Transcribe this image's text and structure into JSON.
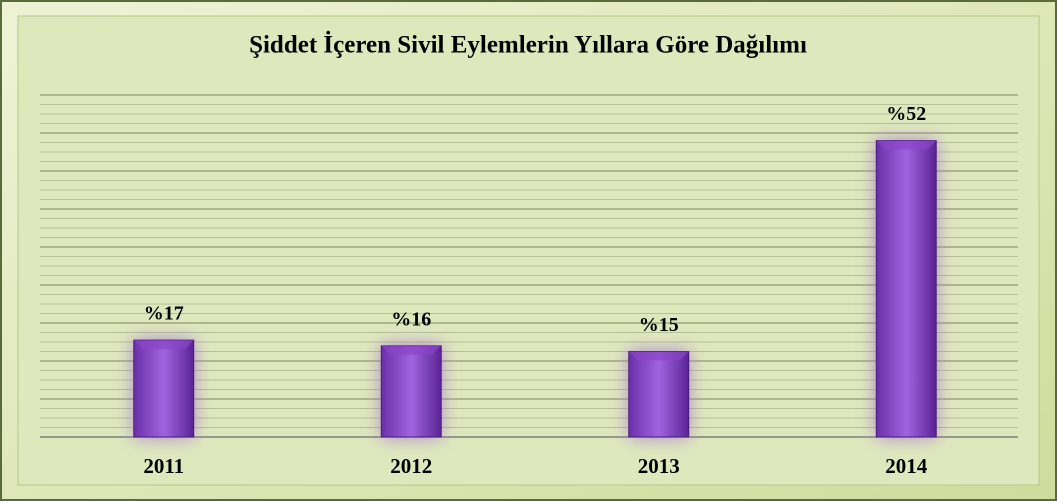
{
  "chart_data": {
    "type": "bar",
    "title": "Şiddet İçeren Sivil Eylemlerin Yıllara Göre Dağılımı",
    "categories": [
      "2011",
      "2012",
      "2013",
      "2014"
    ],
    "values": [
      17,
      16,
      15,
      52
    ],
    "value_labels": [
      "%17",
      "%16",
      "%15",
      "%52"
    ],
    "color": "#8a45c8",
    "ylim": [
      0,
      60
    ],
    "grid": true
  }
}
